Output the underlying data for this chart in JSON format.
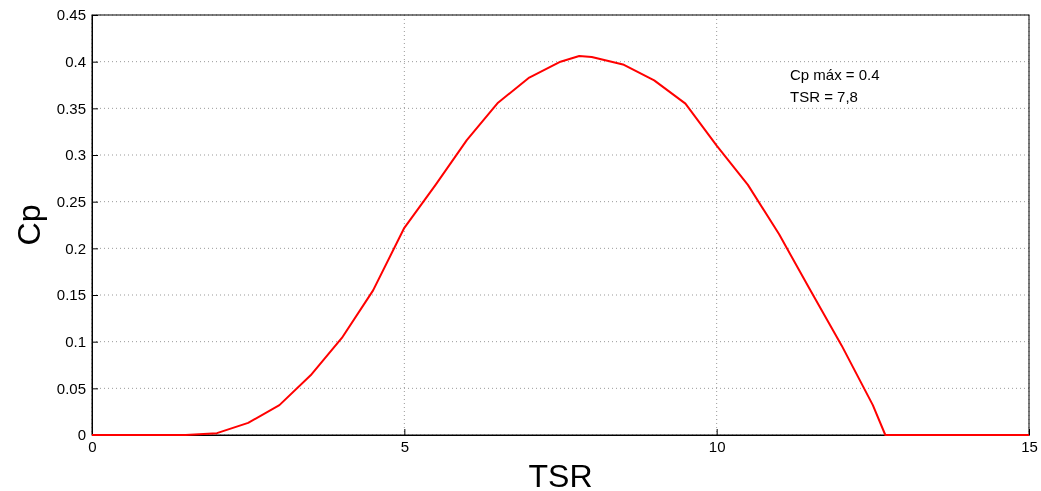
{
  "chart_data": {
    "type": "line",
    "xlabel": "TSR",
    "ylabel": "Cp",
    "x": [
      0,
      1,
      1.5,
      2,
      2.5,
      3,
      3.5,
      4,
      4.5,
      5,
      5.5,
      6,
      6.5,
      7,
      7.5,
      7.8,
      8,
      8.5,
      9,
      9.5,
      10,
      10.5,
      11,
      11.5,
      12,
      12.5,
      12.7,
      13,
      14,
      15
    ],
    "series": [
      {
        "color": "#ff0000",
        "values": [
          0,
          0,
          0,
          0.002,
          0.013,
          0.032,
          0.064,
          0.104,
          0.155,
          0.222,
          0.268,
          0.316,
          0.356,
          0.383,
          0.4,
          0.406,
          0.405,
          0.397,
          0.38,
          0.355,
          0.31,
          0.268,
          0.215,
          0.155,
          0.096,
          0.032,
          0,
          0,
          0,
          0
        ]
      }
    ],
    "xlim": [
      0,
      15
    ],
    "xticks": [
      0,
      5,
      10,
      15
    ],
    "ylim": [
      0,
      0.45
    ],
    "yticks": [
      0,
      0.05,
      0.1,
      0.15,
      0.2,
      0.25,
      0.3,
      0.35,
      0.4,
      0.45
    ],
    "grid": true,
    "line_style": "solid",
    "marker": "none",
    "annotations": [
      "Cp máx = 0.4",
      "TSR = 7,8"
    ]
  }
}
